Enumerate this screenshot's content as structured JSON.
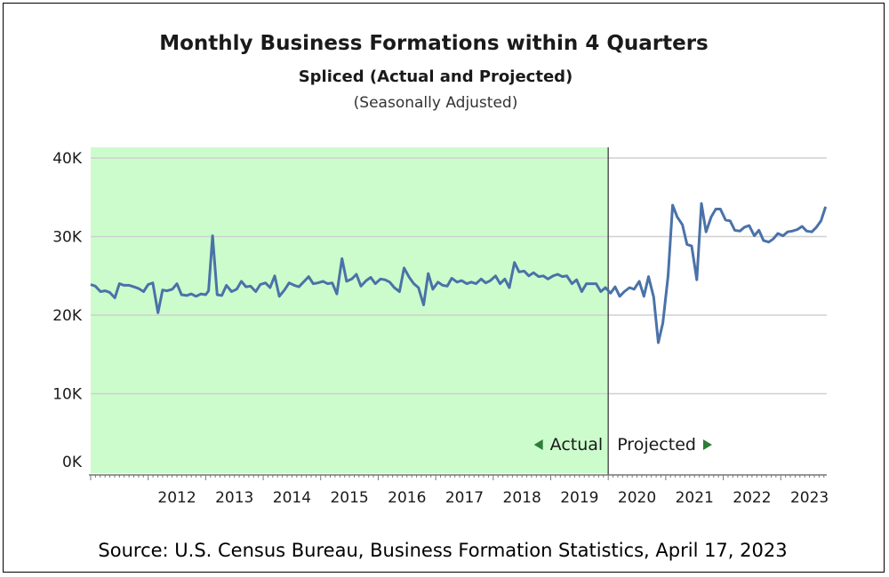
{
  "chart_data": {
    "type": "line",
    "title": "Monthly Business Formations within 4 Quarters",
    "subtitle": "Spliced (Actual and Projected)",
    "note": "(Seasonally Adjusted)",
    "source": "Source: U.S. Census Bureau, Business Formation Statistics, April 17, 2023",
    "ylim": [
      0,
      40000
    ],
    "yticks": [
      {
        "value": 0,
        "label": "0K"
      },
      {
        "value": 10000,
        "label": "10K"
      },
      {
        "value": 20000,
        "label": "20K"
      },
      {
        "value": 30000,
        "label": "30K"
      },
      {
        "value": 40000,
        "label": "40K"
      }
    ],
    "xlim": [
      2011.0,
      2023.8
    ],
    "xticks": [
      "2012",
      "2013",
      "2014",
      "2015",
      "2016",
      "2017",
      "2018",
      "2019",
      "2020",
      "2021",
      "2022",
      "2023"
    ],
    "grid": true,
    "regions": {
      "split": 2020.0,
      "actual_label": "Actual",
      "projected_label": "Projected",
      "actual_color": "#ccfccc",
      "arrow_color": "#2e7d3a"
    },
    "series": [
      {
        "color": "#4a72a8",
        "points": [
          [
            2011.0,
            23900
          ],
          [
            2011.08,
            23700
          ],
          [
            2011.17,
            23000
          ],
          [
            2011.25,
            23100
          ],
          [
            2011.33,
            22900
          ],
          [
            2011.42,
            22200
          ],
          [
            2011.5,
            24000
          ],
          [
            2011.58,
            23800
          ],
          [
            2011.67,
            23800
          ],
          [
            2011.75,
            23600
          ],
          [
            2011.83,
            23400
          ],
          [
            2011.92,
            23000
          ],
          [
            2012.0,
            23900
          ],
          [
            2012.08,
            24100
          ],
          [
            2012.17,
            20300
          ],
          [
            2012.25,
            23200
          ],
          [
            2012.33,
            23100
          ],
          [
            2012.42,
            23300
          ],
          [
            2012.5,
            24000
          ],
          [
            2012.58,
            22600
          ],
          [
            2012.67,
            22500
          ],
          [
            2012.75,
            22700
          ],
          [
            2012.83,
            22400
          ],
          [
            2012.92,
            22700
          ],
          [
            2013.0,
            22600
          ],
          [
            2013.05,
            23100
          ],
          [
            2013.12,
            30100
          ],
          [
            2013.2,
            22600
          ],
          [
            2013.28,
            22500
          ],
          [
            2013.36,
            23800
          ],
          [
            2013.45,
            23000
          ],
          [
            2013.54,
            23300
          ],
          [
            2013.62,
            24300
          ],
          [
            2013.7,
            23600
          ],
          [
            2013.78,
            23700
          ],
          [
            2013.87,
            23000
          ],
          [
            2013.95,
            23900
          ],
          [
            2014.04,
            24100
          ],
          [
            2014.12,
            23500
          ],
          [
            2014.2,
            25000
          ],
          [
            2014.28,
            22400
          ],
          [
            2014.37,
            23200
          ],
          [
            2014.45,
            24100
          ],
          [
            2014.54,
            23800
          ],
          [
            2014.62,
            23600
          ],
          [
            2014.7,
            24200
          ],
          [
            2014.79,
            24900
          ],
          [
            2014.87,
            24000
          ],
          [
            2014.95,
            24100
          ],
          [
            2015.04,
            24300
          ],
          [
            2015.12,
            24000
          ],
          [
            2015.2,
            24100
          ],
          [
            2015.28,
            22700
          ],
          [
            2015.37,
            27200
          ],
          [
            2015.45,
            24300
          ],
          [
            2015.54,
            24600
          ],
          [
            2015.62,
            25200
          ],
          [
            2015.7,
            23700
          ],
          [
            2015.79,
            24400
          ],
          [
            2015.87,
            24800
          ],
          [
            2015.95,
            24000
          ],
          [
            2016.04,
            24600
          ],
          [
            2016.12,
            24500
          ],
          [
            2016.2,
            24200
          ],
          [
            2016.28,
            23500
          ],
          [
            2016.37,
            23000
          ],
          [
            2016.45,
            26000
          ],
          [
            2016.54,
            24800
          ],
          [
            2016.62,
            24000
          ],
          [
            2016.7,
            23500
          ],
          [
            2016.79,
            21300
          ],
          [
            2016.87,
            25300
          ],
          [
            2016.95,
            23300
          ],
          [
            2017.04,
            24200
          ],
          [
            2017.12,
            23800
          ],
          [
            2017.2,
            23700
          ],
          [
            2017.28,
            24700
          ],
          [
            2017.37,
            24200
          ],
          [
            2017.45,
            24400
          ],
          [
            2017.54,
            24000
          ],
          [
            2017.62,
            24200
          ],
          [
            2017.7,
            24000
          ],
          [
            2017.79,
            24600
          ],
          [
            2017.87,
            24100
          ],
          [
            2017.95,
            24400
          ],
          [
            2018.04,
            25000
          ],
          [
            2018.12,
            24000
          ],
          [
            2018.2,
            24600
          ],
          [
            2018.28,
            23500
          ],
          [
            2018.37,
            26700
          ],
          [
            2018.45,
            25500
          ],
          [
            2018.54,
            25600
          ],
          [
            2018.62,
            25000
          ],
          [
            2018.7,
            25400
          ],
          [
            2018.79,
            24900
          ],
          [
            2018.87,
            25000
          ],
          [
            2018.95,
            24600
          ],
          [
            2019.04,
            25000
          ],
          [
            2019.12,
            25200
          ],
          [
            2019.2,
            24900
          ],
          [
            2019.28,
            25000
          ],
          [
            2019.37,
            24000
          ],
          [
            2019.45,
            24500
          ],
          [
            2019.54,
            23000
          ],
          [
            2019.62,
            24000
          ],
          [
            2019.7,
            24000
          ],
          [
            2019.79,
            24000
          ],
          [
            2019.87,
            23000
          ],
          [
            2019.95,
            23500
          ],
          [
            2020.04,
            22800
          ],
          [
            2020.12,
            23600
          ],
          [
            2020.2,
            22400
          ],
          [
            2020.28,
            23000
          ],
          [
            2020.37,
            23500
          ],
          [
            2020.45,
            23300
          ],
          [
            2020.54,
            24300
          ],
          [
            2020.62,
            22400
          ],
          [
            2020.7,
            24900
          ],
          [
            2020.79,
            22300
          ],
          [
            2020.87,
            16500
          ],
          [
            2020.95,
            19000
          ],
          [
            2021.04,
            25000
          ],
          [
            2021.12,
            34000
          ],
          [
            2021.2,
            32500
          ],
          [
            2021.29,
            31500
          ],
          [
            2021.37,
            29000
          ],
          [
            2021.45,
            28800
          ],
          [
            2021.54,
            24500
          ],
          [
            2021.62,
            34200
          ],
          [
            2021.7,
            30600
          ],
          [
            2021.79,
            32500
          ],
          [
            2021.87,
            33500
          ],
          [
            2021.95,
            33500
          ],
          [
            2022.04,
            32100
          ],
          [
            2022.12,
            32000
          ],
          [
            2022.2,
            30800
          ],
          [
            2022.29,
            30700
          ],
          [
            2022.37,
            31200
          ],
          [
            2022.45,
            31400
          ],
          [
            2022.54,
            30100
          ],
          [
            2022.62,
            30800
          ],
          [
            2022.7,
            29500
          ],
          [
            2022.79,
            29300
          ],
          [
            2022.87,
            29700
          ],
          [
            2022.95,
            30400
          ],
          [
            2023.04,
            30100
          ],
          [
            2023.12,
            30600
          ],
          [
            2023.2,
            30700
          ],
          [
            2023.29,
            30900
          ],
          [
            2023.37,
            31300
          ],
          [
            2023.45,
            30700
          ],
          [
            2023.54,
            30600
          ],
          [
            2023.62,
            31200
          ],
          [
            2023.7,
            32000
          ],
          [
            2023.78,
            33800
          ]
        ]
      }
    ]
  }
}
